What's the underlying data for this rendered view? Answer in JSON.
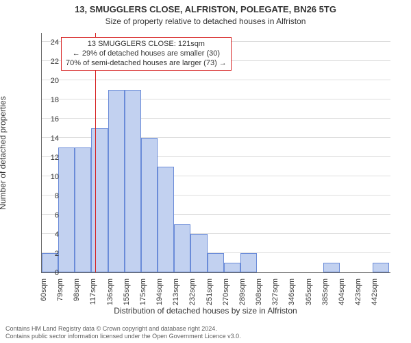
{
  "title_main": "13, SMUGGLERS CLOSE, ALFRISTON, POLEGATE, BN26 5TG",
  "title_sub": "Size of property relative to detached houses in Alfriston",
  "chart": {
    "type": "histogram",
    "x_labels": [
      "60sqm",
      "79sqm",
      "98sqm",
      "117sqm",
      "136sqm",
      "155sqm",
      "175sqm",
      "194sqm",
      "213sqm",
      "232sqm",
      "251sqm",
      "270sqm",
      "289sqm",
      "308sqm",
      "327sqm",
      "346sqm",
      "365sqm",
      "385sqm",
      "404sqm",
      "423sqm",
      "442sqm"
    ],
    "x_min": 60,
    "x_max": 461,
    "bin_width": 19,
    "values": [
      2,
      13,
      13,
      15,
      19,
      19,
      14,
      11,
      5,
      4,
      2,
      1,
      2,
      0,
      0,
      0,
      0,
      1,
      0,
      0,
      1
    ],
    "y_min": 0,
    "y_max": 25,
    "y_ticks": [
      0,
      2,
      4,
      6,
      8,
      10,
      12,
      14,
      16,
      18,
      20,
      22,
      24
    ],
    "bar_fill": "#c2d1f0",
    "bar_stroke": "#6a8bd8",
    "grid_color": "#dddddd",
    "background_color": "#ffffff",
    "xlabel": "Distribution of detached houses by size in Alfriston",
    "ylabel": "Number of detached properties",
    "ref_value": 121,
    "ref_color": "#d62020",
    "annotation": {
      "line1": "13 SMUGGLERS CLOSE: 121sqm",
      "line2": "← 29% of detached houses are smaller (30)",
      "line3": "70% of semi-detached houses are larger (73) →",
      "border_color": "#d62020",
      "fontsize": 11
    },
    "tick_fontsize": 11,
    "label_fontsize": 12,
    "title_fontsize_main": 13,
    "title_fontsize_sub": 12
  },
  "attribution": {
    "line1": "Contains HM Land Registry data © Crown copyright and database right 2024.",
    "line2": "Contains public sector information licensed under the Open Government Licence v3.0."
  }
}
